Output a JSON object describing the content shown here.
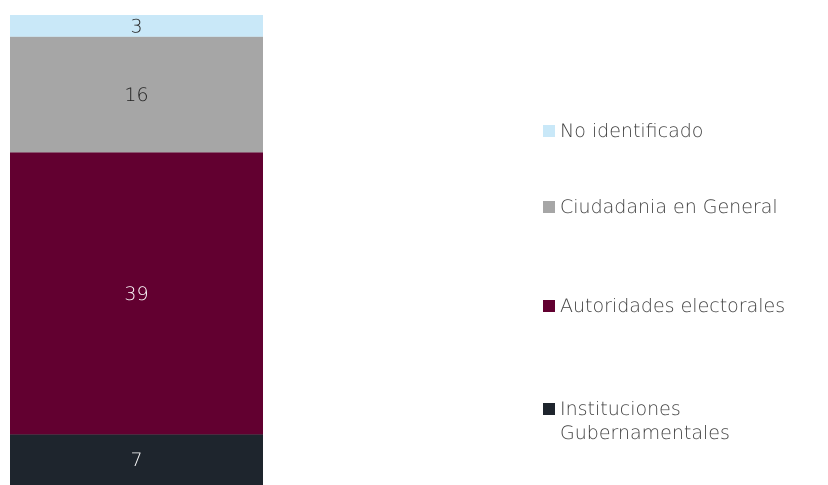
{
  "chart_data": {
    "type": "bar",
    "stacked": true,
    "categories": [
      null
    ],
    "series": [
      {
        "name": "Instituciones Gubernamentales",
        "color": "#1e252d",
        "values": [
          7
        ]
      },
      {
        "name": "Autoridades electorales",
        "color": "#620030",
        "values": [
          39
        ]
      },
      {
        "name": "Ciudadania en General",
        "color": "#a6a6a6",
        "values": [
          16
        ]
      },
      {
        "name": "No identificado",
        "color": "#c9e8f8",
        "values": [
          3
        ]
      }
    ]
  }
}
